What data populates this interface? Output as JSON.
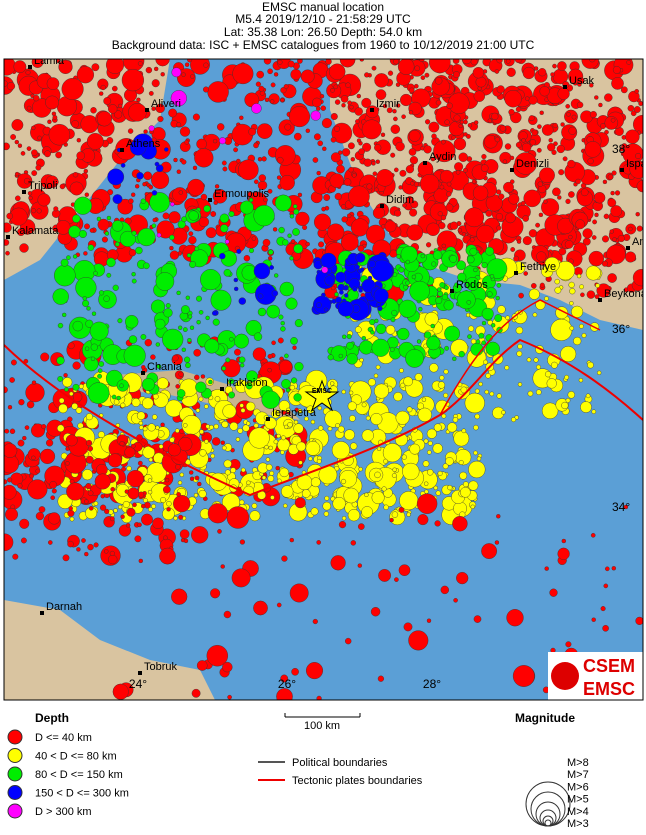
{
  "header": {
    "title": "EMSC manual location",
    "line2": "M5.4  2019/12/10 - 21:58:29 UTC",
    "line3": "Lat: 35.38    Lon: 26.50      Depth:  54.0 km",
    "line4": "Background data: ISC + EMSC catalogues from 1960 to 10/12/2019 21:00 UTC"
  },
  "map": {
    "cities": [
      "Lamia",
      "Aliveri",
      "Athens",
      "Izmir",
      "Usak",
      "Aydin",
      "Denizli",
      "Isparta",
      "Tripoli",
      "Ermoupolis",
      "Didim",
      "Kalamata",
      "Antalya",
      "Fethiye",
      "Rodos",
      "Beykonak",
      "Chania",
      "Irakleion",
      "Ierapetra",
      "Darnah",
      "Tobruk"
    ],
    "lat_labels": [
      "38°",
      "36°",
      "34°"
    ],
    "lon_labels": [
      "24°",
      "26°",
      "28°"
    ],
    "epicenter_label": "EMSC",
    "logo": [
      "CSEM",
      "EMSC"
    ]
  },
  "legend": {
    "depth_title": "Depth",
    "depth_items": [
      {
        "label": "D <= 40 km",
        "color": "#ff0000"
      },
      {
        "label": "40 < D <= 80 km",
        "color": "#ffff00"
      },
      {
        "label": "80 < D <= 150 km",
        "color": "#00ee00"
      },
      {
        "label": "150 < D <= 300 km",
        "color": "#0000ff"
      },
      {
        "label": "D > 300 km",
        "color": "#ff00ff"
      }
    ],
    "scale": "100 km",
    "boundaries": [
      {
        "label": "Political boundaries",
        "color": "#555555"
      },
      {
        "label": "Tectonic plates boundaries",
        "color": "#ee0000"
      }
    ],
    "magnitude_title": "Magnitude",
    "magnitude_items": [
      "M>8",
      "M>7",
      "M>6",
      "M>5",
      "M>4",
      "M>3"
    ]
  }
}
